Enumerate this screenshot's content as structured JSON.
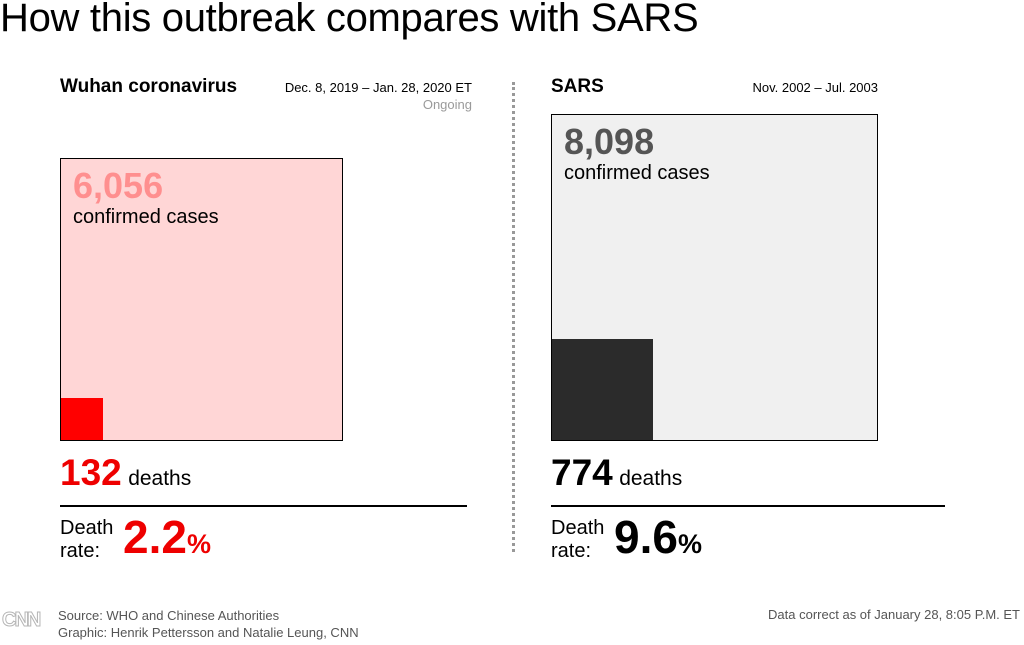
{
  "title": "How this outbreak compares with SARS",
  "chart_data": {
    "type": "area-squares",
    "panels": [
      {
        "name": "Wuhan coronavirus",
        "date_range": "Dec. 8, 2019 – Jan. 28, 2020 ET",
        "status": "Ongoing",
        "cases": 6056,
        "cases_text": "6,056",
        "cases_label": "confirmed cases",
        "deaths": 132,
        "deaths_text": "132",
        "deaths_label": "deaths",
        "death_rate_label": "Death rate:",
        "death_rate": 2.2,
        "death_rate_text": "2.2",
        "percent": "%",
        "colors": {
          "cases_fill": "#ffd6d6",
          "cases_text": "#ff8f8f",
          "deaths_fill": "#ff0000",
          "accent": "#ee0000"
        }
      },
      {
        "name": "SARS",
        "date_range": "Nov. 2002 – Jul. 2003",
        "cases": 8098,
        "cases_text": "8,098",
        "cases_label": "confirmed cases",
        "deaths": 774,
        "deaths_text": "774",
        "deaths_label": "deaths",
        "death_rate_label": "Death rate:",
        "death_rate": 9.6,
        "death_rate_text": "9.6",
        "percent": "%",
        "colors": {
          "cases_fill": "#f0f0f0",
          "cases_text": "#555555",
          "deaths_fill": "#2b2b2b",
          "accent": "#000000"
        }
      }
    ]
  },
  "footer": {
    "logo": "CNN",
    "source": "Source: WHO and Chinese Authorities",
    "credit": "Graphic: Henrik Pettersson and Natalie Leung, CNN",
    "note": "Data correct as of January 28, 8:05 P.M. ET"
  }
}
